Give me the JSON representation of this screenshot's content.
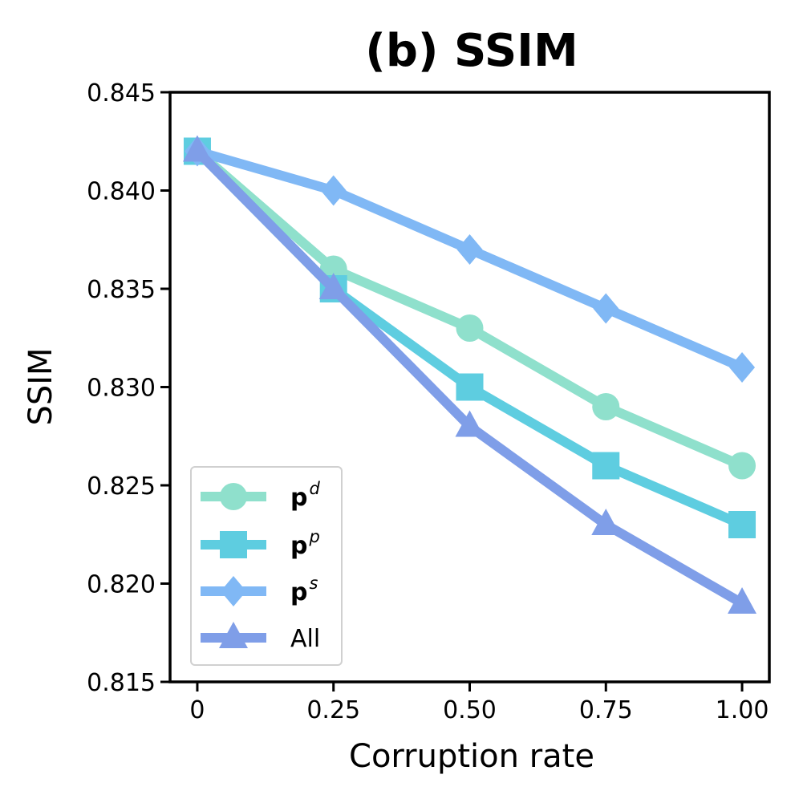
{
  "chart_data": {
    "type": "line",
    "title": "(b) SSIM",
    "xlabel": "Corruption rate",
    "ylabel": "SSIM",
    "x": [
      0,
      0.25,
      0.5,
      0.75,
      1.0
    ],
    "x_tick_labels": [
      "0",
      "0.25",
      "0.50",
      "0.75",
      "1.00"
    ],
    "xlim": [
      -0.05,
      1.05
    ],
    "ylim": [
      0.815,
      0.845
    ],
    "y_ticks": [
      0.815,
      0.82,
      0.825,
      0.83,
      0.835,
      0.84,
      0.845
    ],
    "y_tick_labels": [
      "0.815",
      "0.820",
      "0.825",
      "0.830",
      "0.835",
      "0.840",
      "0.845"
    ],
    "grid": false,
    "legend_position": "bottom-left",
    "series": [
      {
        "id": "pd",
        "name": "p",
        "sup": "d",
        "bold": true,
        "marker": "circle",
        "color": "#8fe0cc",
        "values": [
          0.842,
          0.836,
          0.833,
          0.829,
          0.826
        ]
      },
      {
        "id": "pp",
        "name": "p",
        "sup": "p",
        "bold": true,
        "marker": "square",
        "color": "#5ecde0",
        "values": [
          0.842,
          0.835,
          0.83,
          0.826,
          0.823
        ]
      },
      {
        "id": "ps",
        "name": "p",
        "sup": "s",
        "bold": true,
        "marker": "diamond",
        "color": "#80b8f5",
        "values": [
          0.842,
          0.84,
          0.837,
          0.834,
          0.831
        ]
      },
      {
        "id": "all",
        "name": "All",
        "sup": "",
        "bold": false,
        "marker": "triangle",
        "color": "#7f9ee8",
        "values": [
          0.842,
          0.835,
          0.828,
          0.823,
          0.819
        ]
      }
    ]
  }
}
